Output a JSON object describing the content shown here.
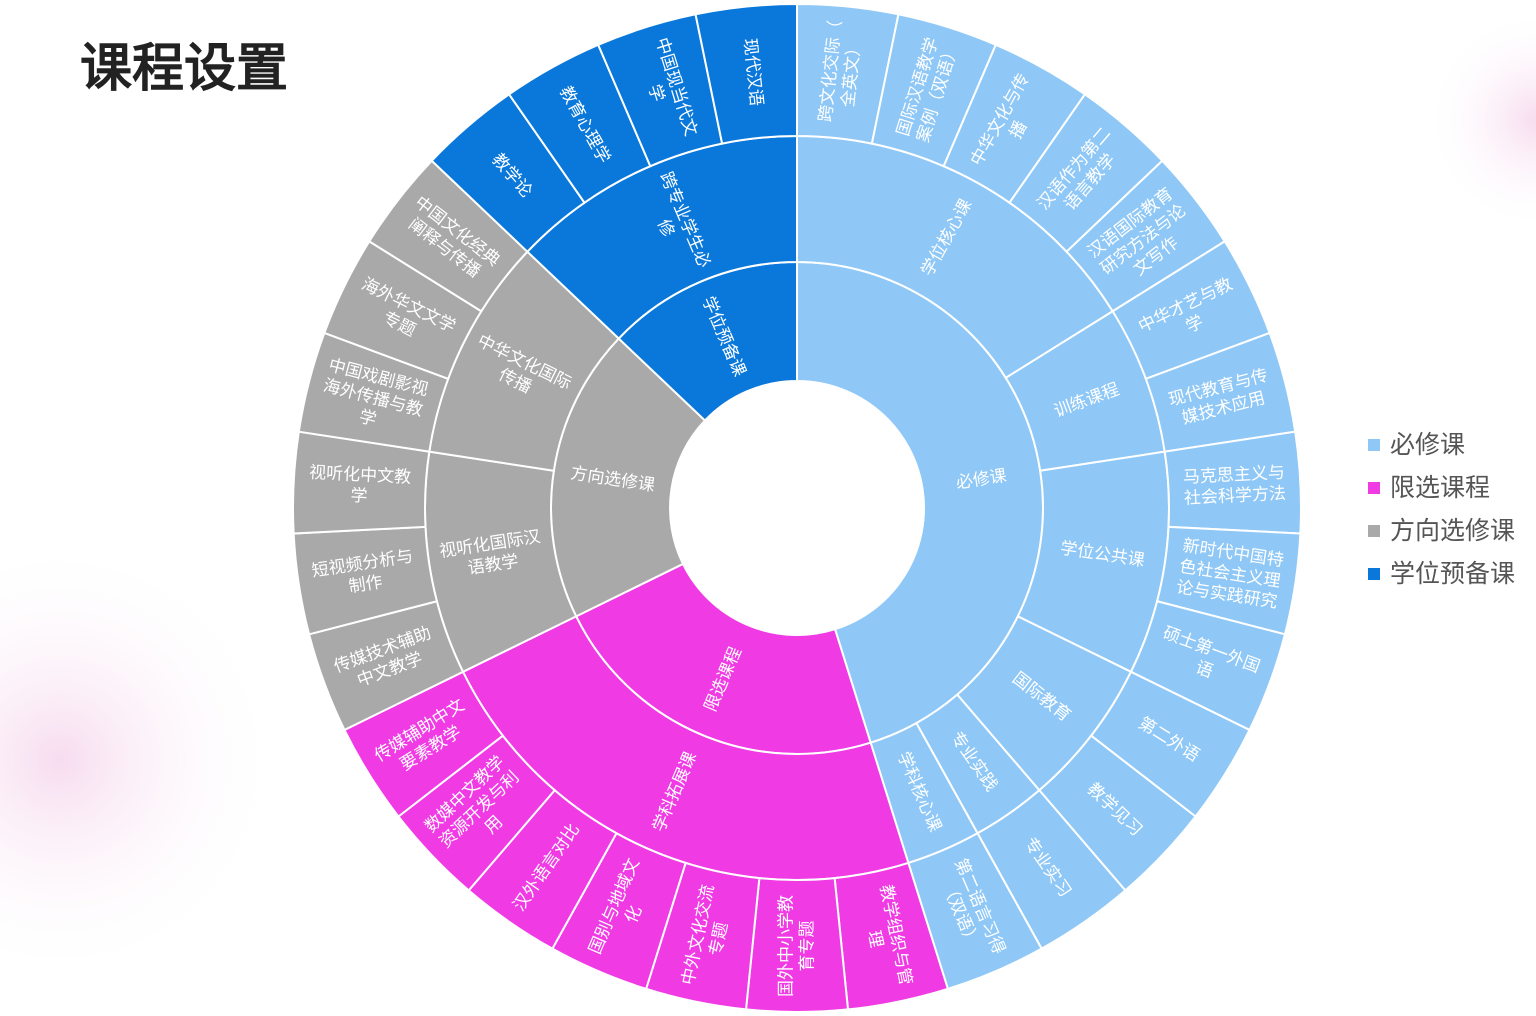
{
  "chart_data": {
    "type": "sunburst",
    "title": "课程设置",
    "legend": "right",
    "series": [
      {
        "name": "必修课",
        "color": "#8fc8f6",
        "children": [
          {
            "name": "学位核心课",
            "children": [
              {
                "name": "跨文化交际（全英文）",
                "value": 1
              },
              {
                "name": "国际汉语教学案例（双语）",
                "value": 1
              },
              {
                "name": "中华文化与传播",
                "value": 1
              },
              {
                "name": "汉语作为第二语言教学",
                "value": 1
              },
              {
                "name": "汉语国际教育研究方法与论文写作",
                "value": 1
              }
            ]
          },
          {
            "name": "训练课程",
            "children": [
              {
                "name": "中华才艺与教学",
                "value": 1
              },
              {
                "name": "现代教育与传媒技术应用",
                "value": 1
              }
            ]
          },
          {
            "name": "学位公共课",
            "children": [
              {
                "name": "马克思主义与社会科学方法",
                "value": 1
              },
              {
                "name": "新时代中国特色社会主义理论与实践研究",
                "value": 1
              },
              {
                "name": "硕士第一外国语",
                "value": 1
              }
            ]
          },
          {
            "name": "国际教育",
            "children": [
              {
                "name": "第二外语",
                "value": 1
              },
              {
                "name": "教学见习",
                "value": 1
              }
            ]
          },
          {
            "name": "专业实践",
            "children": [
              {
                "name": "专业实习",
                "value": 1
              }
            ]
          },
          {
            "name": "学科核心课",
            "children": [
              {
                "name": "第二语言习得（双语）",
                "value": 1
              }
            ]
          }
        ]
      },
      {
        "name": "限选课程",
        "color": "#f03ae4",
        "children": [
          {
            "name": "学科拓展课",
            "children": [
              {
                "name": "教学组织与管理",
                "value": 1
              },
              {
                "name": "国外中小学教育专题",
                "value": 1
              },
              {
                "name": "中外文化交流专题",
                "value": 1
              },
              {
                "name": "国别与地域文化",
                "value": 1
              },
              {
                "name": "汉外语言对比",
                "value": 1
              },
              {
                "name": "数媒中文教学资源开发与利用",
                "value": 1
              },
              {
                "name": "传媒辅助中文要素教学",
                "value": 1
              }
            ]
          }
        ]
      },
      {
        "name": "方向选修课",
        "color": "#a9a9a9",
        "children": [
          {
            "name": "视听化国际汉语教学",
            "children": [
              {
                "name": "传媒技术辅助中文教学",
                "value": 1
              },
              {
                "name": "短视频分析与制作",
                "value": 1
              },
              {
                "name": "视听化中文教学",
                "value": 1
              }
            ]
          },
          {
            "name": "中华文化国际传播",
            "children": [
              {
                "name": "中国戏剧影视海外传播与教学",
                "value": 1
              },
              {
                "name": "海外华文文学专题",
                "value": 1
              },
              {
                "name": "中国文化经典阐释与传播",
                "value": 1
              }
            ]
          }
        ]
      },
      {
        "name": "学位预备课",
        "color": "#0a78da",
        "children": [
          {
            "name": "跨专业学生必修",
            "children": [
              {
                "name": "教学论",
                "value": 1
              },
              {
                "name": "教育心理学",
                "value": 1
              },
              {
                "name": "中国现当代文学",
                "value": 1
              },
              {
                "name": "现代汉语",
                "value": 1
              }
            ]
          }
        ]
      }
    ]
  }
}
